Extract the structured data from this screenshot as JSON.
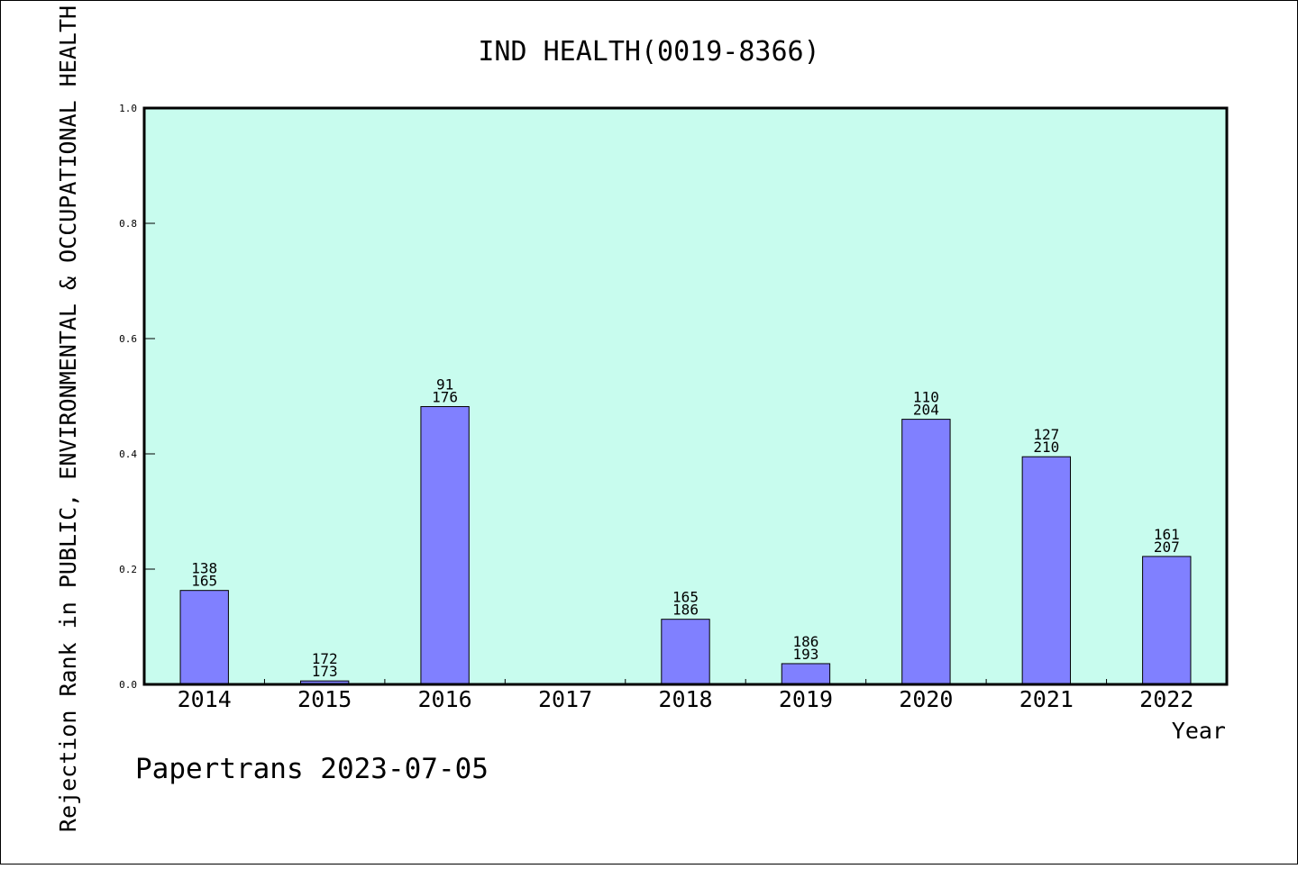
{
  "chart_data": {
    "type": "bar",
    "title": "IND HEALTH(0019-8366)",
    "xlabel": "Year",
    "ylabel": "Rejection Rank in PUBLIC, ENVIRONMENTAL & OCCUPATIONAL HEALTH",
    "ylim": [
      0,
      1.0
    ],
    "yticks": [
      "0.0",
      "0.2",
      "0.4",
      "0.6",
      "0.8",
      "1.0"
    ],
    "categories": [
      "2014",
      "2015",
      "2016",
      "2017",
      "2018",
      "2019",
      "2020",
      "2021",
      "2022"
    ],
    "values": [
      0.163,
      0.006,
      0.482,
      null,
      0.113,
      0.036,
      0.46,
      0.395,
      0.222
    ],
    "rank_labels": [
      [
        "138",
        "165"
      ],
      [
        "172",
        "173"
      ],
      [
        "91",
        "176"
      ],
      null,
      [
        "165",
        "186"
      ],
      [
        "186",
        "193"
      ],
      [
        "110",
        "204"
      ],
      [
        "127",
        "210"
      ],
      [
        "161",
        "207"
      ]
    ],
    "colors": {
      "plot_background": "#c8fcee",
      "bar_fill": "#8080ff",
      "bar_stroke": "#000000"
    },
    "grid": false,
    "legend": "none"
  },
  "footer": {
    "text": "Papertrans 2023-07-05"
  }
}
